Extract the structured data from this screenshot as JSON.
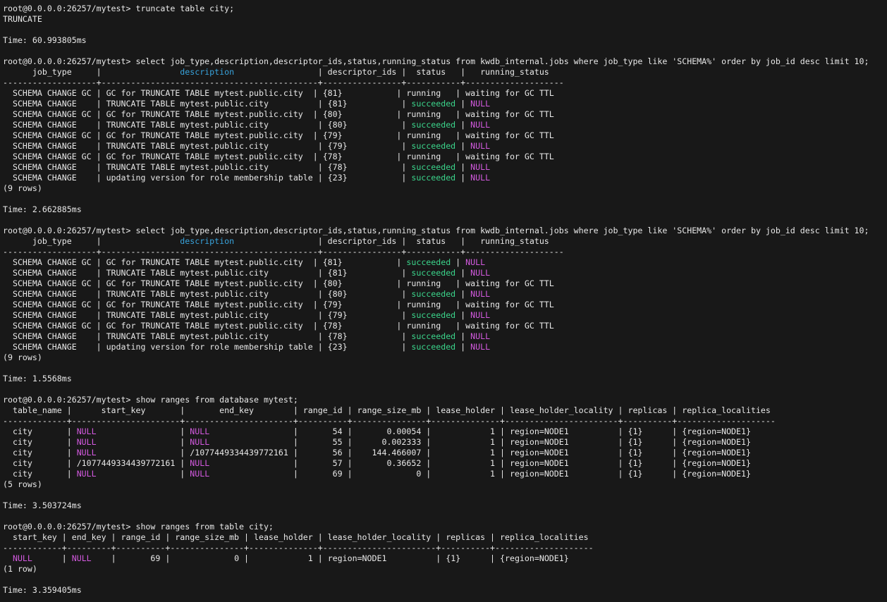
{
  "terminal": {
    "colors": {
      "bg": "#181818",
      "fg": "#e8e8e8",
      "cyan": "#38a3dc",
      "green": "#3bd68c",
      "magenta": "#d45ae0"
    },
    "prompt": "root@0.0.0.0:26257/mytest>",
    "lines": [
      "root@0.0.0.0:26257/mytest> truncate table city;",
      "TRUNCATE",
      "",
      "Time: 60.993805ms",
      "",
      "root@0.0.0.0:26257/mytest> select job_type,description,descriptor_ids,status,running_status from kwdb_internal.jobs where job_type like 'SCHEMA%' order by job_id desc limit 10;",
      [
        [
          "      job_type     |                ",
          ""
        ],
        [
          "description",
          "c"
        ],
        [
          "                 | descriptor_ids |  status   |   running_status",
          ""
        ]
      ],
      "-------------------+--------------------------------------------+----------------+-----------+--------------------",
      "  SCHEMA CHANGE GC | GC for TRUNCATE TABLE mytest.public.city  | {81}           | running   | waiting for GC TTL",
      [
        [
          "  SCHEMA CHANGE    | TRUNCATE TABLE mytest.public.city          | {81}           | ",
          ""
        ],
        [
          "succeeded",
          "g"
        ],
        [
          " | ",
          ""
        ],
        [
          "NULL",
          "m"
        ]
      ],
      "  SCHEMA CHANGE GC | GC for TRUNCATE TABLE mytest.public.city  | {80}           | running   | waiting for GC TTL",
      [
        [
          "  SCHEMA CHANGE    | TRUNCATE TABLE mytest.public.city          | {80}           | ",
          ""
        ],
        [
          "succeeded",
          "g"
        ],
        [
          " | ",
          ""
        ],
        [
          "NULL",
          "m"
        ]
      ],
      "  SCHEMA CHANGE GC | GC for TRUNCATE TABLE mytest.public.city  | {79}           | running   | waiting for GC TTL",
      [
        [
          "  SCHEMA CHANGE    | TRUNCATE TABLE mytest.public.city          | {79}           | ",
          ""
        ],
        [
          "succeeded",
          "g"
        ],
        [
          " | ",
          ""
        ],
        [
          "NULL",
          "m"
        ]
      ],
      "  SCHEMA CHANGE GC | GC for TRUNCATE TABLE mytest.public.city  | {78}           | running   | waiting for GC TTL",
      [
        [
          "  SCHEMA CHANGE    | TRUNCATE TABLE mytest.public.city          | {78}           | ",
          ""
        ],
        [
          "succeeded",
          "g"
        ],
        [
          " | ",
          ""
        ],
        [
          "NULL",
          "m"
        ]
      ],
      [
        [
          "  SCHEMA CHANGE    | updating version for role membership table | {23}           | ",
          ""
        ],
        [
          "succeeded",
          "g"
        ],
        [
          " | ",
          ""
        ],
        [
          "NULL",
          "m"
        ]
      ],
      "(9 rows)",
      "",
      "Time: 2.662885ms",
      "",
      "root@0.0.0.0:26257/mytest> select job_type,description,descriptor_ids,status,running_status from kwdb_internal.jobs where job_type like 'SCHEMA%' order by job_id desc limit 10;",
      [
        [
          "      job_type     |                ",
          ""
        ],
        [
          "description",
          "c"
        ],
        [
          "                 | descriptor_ids |  status   |   running_status",
          ""
        ]
      ],
      "-------------------+--------------------------------------------+----------------+-----------+--------------------",
      [
        [
          "  SCHEMA CHANGE GC | GC for TRUNCATE TABLE mytest.public.city  | {81}           | ",
          ""
        ],
        [
          "succeeded",
          "g"
        ],
        [
          " | ",
          ""
        ],
        [
          "NULL",
          "m"
        ]
      ],
      [
        [
          "  SCHEMA CHANGE    | TRUNCATE TABLE mytest.public.city          | {81}           | ",
          ""
        ],
        [
          "succeeded",
          "g"
        ],
        [
          " | ",
          ""
        ],
        [
          "NULL",
          "m"
        ]
      ],
      "  SCHEMA CHANGE GC | GC for TRUNCATE TABLE mytest.public.city  | {80}           | running   | waiting for GC TTL",
      [
        [
          "  SCHEMA CHANGE    | TRUNCATE TABLE mytest.public.city          | {80}           | ",
          ""
        ],
        [
          "succeeded",
          "g"
        ],
        [
          " | ",
          ""
        ],
        [
          "NULL",
          "m"
        ]
      ],
      "  SCHEMA CHANGE GC | GC for TRUNCATE TABLE mytest.public.city  | {79}           | running   | waiting for GC TTL",
      [
        [
          "  SCHEMA CHANGE    | TRUNCATE TABLE mytest.public.city          | {79}           | ",
          ""
        ],
        [
          "succeeded",
          "g"
        ],
        [
          " | ",
          ""
        ],
        [
          "NULL",
          "m"
        ]
      ],
      "  SCHEMA CHANGE GC | GC for TRUNCATE TABLE mytest.public.city  | {78}           | running   | waiting for GC TTL",
      [
        [
          "  SCHEMA CHANGE    | TRUNCATE TABLE mytest.public.city          | {78}           | ",
          ""
        ],
        [
          "succeeded",
          "g"
        ],
        [
          " | ",
          ""
        ],
        [
          "NULL",
          "m"
        ]
      ],
      [
        [
          "  SCHEMA CHANGE    | updating version for role membership table | {23}           | ",
          ""
        ],
        [
          "succeeded",
          "g"
        ],
        [
          " | ",
          ""
        ],
        [
          "NULL",
          "m"
        ]
      ],
      "(9 rows)",
      "",
      "Time: 1.5568ms",
      "",
      "root@0.0.0.0:26257/mytest> show ranges from database mytest;",
      "  table_name |      start_key       |       end_key        | range_id | range_size_mb | lease_holder | lease_holder_locality | replicas | replica_localities",
      "-------------+----------------------+----------------------+----------+---------------+--------------+-----------------------+----------+--------------------",
      [
        [
          "  city       | ",
          ""
        ],
        [
          "NULL",
          "m"
        ],
        [
          "                 | ",
          ""
        ],
        [
          "NULL",
          "m"
        ],
        [
          "                 |       54 |       0.00054 |            1 | region=NODE1          | {1}      | {region=NODE1}",
          ""
        ]
      ],
      [
        [
          "  city       | ",
          ""
        ],
        [
          "NULL",
          "m"
        ],
        [
          "                 | ",
          ""
        ],
        [
          "NULL",
          "m"
        ],
        [
          "                 |       55 |      0.002333 |            1 | region=NODE1          | {1}      | {region=NODE1}",
          ""
        ]
      ],
      [
        [
          "  city       | ",
          ""
        ],
        [
          "NULL",
          "m"
        ],
        [
          "                 | /1077449334439772161 |       56 |    144.466007 |            1 | region=NODE1          | {1}      | {region=NODE1}",
          ""
        ]
      ],
      [
        [
          "  city       | /1077449334439772161 | ",
          ""
        ],
        [
          "NULL",
          "m"
        ],
        [
          "                 |       57 |       0.36652 |            1 | region=NODE1          | {1}      | {region=NODE1}",
          ""
        ]
      ],
      [
        [
          "  city       | ",
          ""
        ],
        [
          "NULL",
          "m"
        ],
        [
          "                 | ",
          ""
        ],
        [
          "NULL",
          "m"
        ],
        [
          "                 |       69 |             0 |            1 | region=NODE1          | {1}      | {region=NODE1}",
          ""
        ]
      ],
      "(5 rows)",
      "",
      "Time: 3.503724ms",
      "",
      "root@0.0.0.0:26257/mytest> show ranges from table city;",
      "  start_key | end_key | range_id | range_size_mb | lease_holder | lease_holder_locality | replicas | replica_localities",
      "------------+---------+----------+---------------+--------------+-----------------------+----------+--------------------",
      [
        [
          "  ",
          ""
        ],
        [
          "NULL",
          "m"
        ],
        [
          "      | ",
          ""
        ],
        [
          "NULL",
          "m"
        ],
        [
          "    |       69 |             0 |            1 | region=NODE1          | {1}      | {region=NODE1}",
          ""
        ]
      ],
      "(1 row)",
      "",
      "Time: 3.359405ms"
    ]
  },
  "commands": [
    {
      "input": "truncate table city;",
      "result": "TRUNCATE",
      "time": "Time: 60.993805ms"
    },
    {
      "input": "select job_type,description,descriptor_ids,status,running_status from kwdb_internal.jobs where job_type like 'SCHEMA%' order by job_id desc limit 10;",
      "row_count_label": "(9 rows)",
      "time": "Time: 2.662885ms"
    },
    {
      "input": "select job_type,description,descriptor_ids,status,running_status from kwdb_internal.jobs where job_type like 'SCHEMA%' order by job_id desc limit 10;",
      "row_count_label": "(9 rows)",
      "time": "Time: 1.5568ms"
    },
    {
      "input": "show ranges from database mytest;",
      "row_count_label": "(5 rows)",
      "time": "Time: 3.503724ms"
    },
    {
      "input": "show ranges from table city;",
      "row_count_label": "(1 row)",
      "time": "Time: 3.359405ms"
    }
  ],
  "tables": [
    {
      "columns": [
        "job_type",
        "description",
        "descriptor_ids",
        "status",
        "running_status"
      ],
      "rows": [
        [
          "SCHEMA CHANGE GC",
          "GC for TRUNCATE TABLE mytest.public.city",
          "{81}",
          "running",
          "waiting for GC TTL"
        ],
        [
          "SCHEMA CHANGE",
          "TRUNCATE TABLE mytest.public.city",
          "{81}",
          "succeeded",
          "NULL"
        ],
        [
          "SCHEMA CHANGE GC",
          "GC for TRUNCATE TABLE mytest.public.city",
          "{80}",
          "running",
          "waiting for GC TTL"
        ],
        [
          "SCHEMA CHANGE",
          "TRUNCATE TABLE mytest.public.city",
          "{80}",
          "succeeded",
          "NULL"
        ],
        [
          "SCHEMA CHANGE GC",
          "GC for TRUNCATE TABLE mytest.public.city",
          "{79}",
          "running",
          "waiting for GC TTL"
        ],
        [
          "SCHEMA CHANGE",
          "TRUNCATE TABLE mytest.public.city",
          "{79}",
          "succeeded",
          "NULL"
        ],
        [
          "SCHEMA CHANGE GC",
          "GC for TRUNCATE TABLE mytest.public.city",
          "{78}",
          "running",
          "waiting for GC TTL"
        ],
        [
          "SCHEMA CHANGE",
          "TRUNCATE TABLE mytest.public.city",
          "{78}",
          "succeeded",
          "NULL"
        ],
        [
          "SCHEMA CHANGE",
          "updating version for role membership table",
          "{23}",
          "succeeded",
          "NULL"
        ]
      ],
      "row_count_label": "(9 rows)"
    },
    {
      "columns": [
        "job_type",
        "description",
        "descriptor_ids",
        "status",
        "running_status"
      ],
      "rows": [
        [
          "SCHEMA CHANGE GC",
          "GC for TRUNCATE TABLE mytest.public.city",
          "{81}",
          "succeeded",
          "NULL"
        ],
        [
          "SCHEMA CHANGE",
          "TRUNCATE TABLE mytest.public.city",
          "{81}",
          "succeeded",
          "NULL"
        ],
        [
          "SCHEMA CHANGE GC",
          "GC for TRUNCATE TABLE mytest.public.city",
          "{80}",
          "running",
          "waiting for GC TTL"
        ],
        [
          "SCHEMA CHANGE",
          "TRUNCATE TABLE mytest.public.city",
          "{80}",
          "succeeded",
          "NULL"
        ],
        [
          "SCHEMA CHANGE GC",
          "GC for TRUNCATE TABLE mytest.public.city",
          "{79}",
          "running",
          "waiting for GC TTL"
        ],
        [
          "SCHEMA CHANGE",
          "TRUNCATE TABLE mytest.public.city",
          "{79}",
          "succeeded",
          "NULL"
        ],
        [
          "SCHEMA CHANGE GC",
          "GC for TRUNCATE TABLE mytest.public.city",
          "{78}",
          "running",
          "waiting for GC TTL"
        ],
        [
          "SCHEMA CHANGE",
          "TRUNCATE TABLE mytest.public.city",
          "{78}",
          "succeeded",
          "NULL"
        ],
        [
          "SCHEMA CHANGE",
          "updating version for role membership table",
          "{23}",
          "succeeded",
          "NULL"
        ]
      ],
      "row_count_label": "(9 rows)"
    },
    {
      "columns": [
        "table_name",
        "start_key",
        "end_key",
        "range_id",
        "range_size_mb",
        "lease_holder",
        "lease_holder_locality",
        "replicas",
        "replica_localities"
      ],
      "rows": [
        [
          "city",
          "NULL",
          "NULL",
          "54",
          "0.00054",
          "1",
          "region=NODE1",
          "{1}",
          "{region=NODE1}"
        ],
        [
          "city",
          "NULL",
          "NULL",
          "55",
          "0.002333",
          "1",
          "region=NODE1",
          "{1}",
          "{region=NODE1}"
        ],
        [
          "city",
          "NULL",
          "/1077449334439772161",
          "56",
          "144.466007",
          "1",
          "region=NODE1",
          "{1}",
          "{region=NODE1}"
        ],
        [
          "city",
          "/1077449334439772161",
          "NULL",
          "57",
          "0.36652",
          "1",
          "region=NODE1",
          "{1}",
          "{region=NODE1}"
        ],
        [
          "city",
          "NULL",
          "NULL",
          "69",
          "0",
          "1",
          "region=NODE1",
          "{1}",
          "{region=NODE1}"
        ]
      ],
      "row_count_label": "(5 rows)"
    },
    {
      "columns": [
        "start_key",
        "end_key",
        "range_id",
        "range_size_mb",
        "lease_holder",
        "lease_holder_locality",
        "replicas",
        "replica_localities"
      ],
      "rows": [
        [
          "NULL",
          "NULL",
          "69",
          "0",
          "1",
          "region=NODE1",
          "{1}",
          "{region=NODE1}"
        ]
      ],
      "row_count_label": "(1 row)"
    }
  ]
}
